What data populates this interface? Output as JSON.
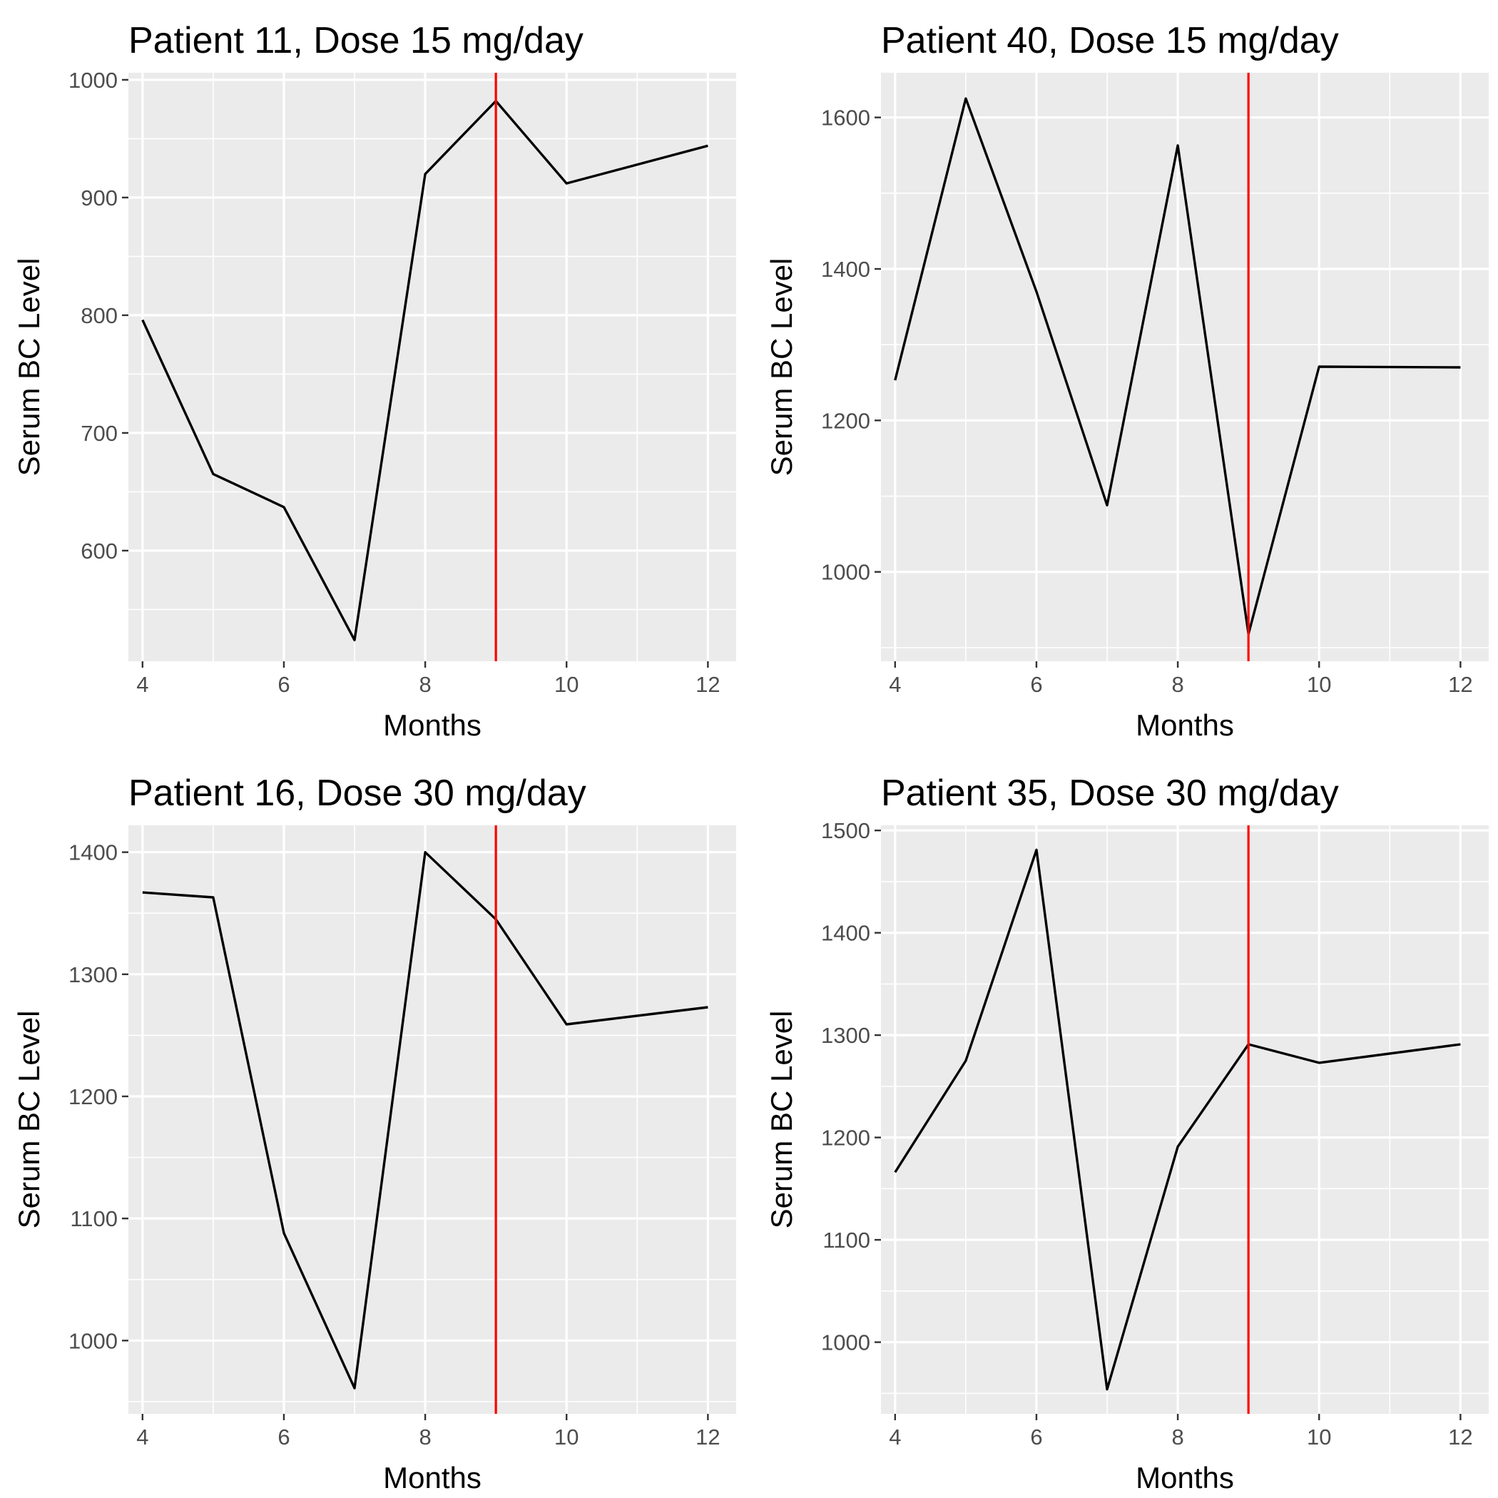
{
  "chart_data": [
    {
      "type": "line",
      "title": "Patient 11, Dose 15 mg/day",
      "xlabel": "Months",
      "ylabel": "Serum BC Level",
      "x": [
        4,
        5,
        6,
        7,
        8,
        9,
        10,
        12
      ],
      "series": [
        {
          "values": [
            796,
            665,
            637,
            524,
            920,
            982,
            912,
            944
          ]
        }
      ],
      "xlim": [
        3.8,
        12.4
      ],
      "ylim": [
        506,
        1006
      ],
      "xticks": [
        4,
        6,
        8,
        10,
        12
      ],
      "yticks": [
        600,
        700,
        800,
        900,
        1000
      ],
      "reference_line": {
        "x": 9,
        "color": "#ff0000"
      },
      "grid": true
    },
    {
      "type": "line",
      "title": "Patient 40, Dose 15 mg/day",
      "xlabel": "Months",
      "ylabel": "Serum BC Level",
      "x": [
        4,
        5,
        6,
        7,
        8,
        9,
        10,
        12
      ],
      "series": [
        {
          "values": [
            1253,
            1625,
            1370,
            1088,
            1563,
            918,
            1271,
            1270
          ]
        }
      ],
      "xlim": [
        3.8,
        12.4
      ],
      "ylim": [
        882,
        1659
      ],
      "xticks": [
        4,
        6,
        8,
        10,
        12
      ],
      "yticks": [
        1000,
        1200,
        1400,
        1600
      ],
      "reference_line": {
        "x": 9,
        "color": "#ff0000"
      },
      "grid": true
    },
    {
      "type": "line",
      "title": "Patient 16, Dose 30 mg/day",
      "xlabel": "Months",
      "ylabel": "Serum BC Level",
      "x": [
        4,
        5,
        6,
        7,
        8,
        9,
        10,
        12
      ],
      "series": [
        {
          "values": [
            1367,
            1363,
            1088,
            961,
            1400,
            1345,
            1259,
            1273
          ]
        }
      ],
      "xlim": [
        3.8,
        12.4
      ],
      "ylim": [
        940,
        1422
      ],
      "xticks": [
        4,
        6,
        8,
        10,
        12
      ],
      "yticks": [
        1000,
        1100,
        1200,
        1300,
        1400
      ],
      "reference_line": {
        "x": 9,
        "color": "#ff0000"
      },
      "grid": true
    },
    {
      "type": "line",
      "title": "Patient 35, Dose 30 mg/day",
      "xlabel": "Months",
      "ylabel": "Serum BC Level",
      "x": [
        4,
        5,
        6,
        7,
        8,
        9,
        10,
        12
      ],
      "series": [
        {
          "values": [
            1166,
            1275,
            1481,
            954,
            1191,
            1291,
            1273,
            1291
          ]
        }
      ],
      "xlim": [
        3.8,
        12.4
      ],
      "ylim": [
        930,
        1505
      ],
      "xticks": [
        4,
        6,
        8,
        10,
        12
      ],
      "yticks": [
        1000,
        1100,
        1200,
        1300,
        1400,
        1500
      ],
      "reference_line": {
        "x": 9,
        "color": "#ff0000"
      },
      "grid": true
    }
  ]
}
